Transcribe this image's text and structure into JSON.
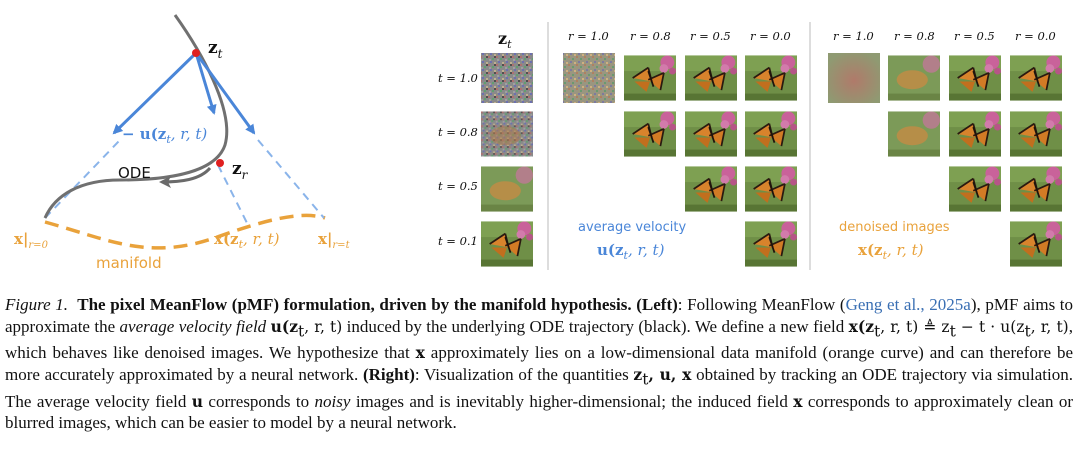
{
  "left_diagram": {
    "zt_label": "z",
    "zt_sub": "t",
    "u_label": "− u(z",
    "u_sub": "t",
    "u_tail": ", r, t)",
    "ode_label": "ODE",
    "zr_label": "z",
    "zr_sub": "r",
    "x_r0_label": "x|",
    "x_r0_sub": "r=0",
    "x_mid_label": "x(z",
    "x_mid_sub": "t",
    "x_mid_tail": ", r, t)",
    "x_rt_label": "x|",
    "x_rt_sub": "r=t",
    "manifold_label": "manifold",
    "colors": {
      "blue": "#4a86d8",
      "light_blue": "#8ab4ea",
      "orange": "#e9a23b",
      "gray": "#707070",
      "red": "#e02020"
    }
  },
  "grid": {
    "zt_header": "z",
    "zt_header_sub": "t",
    "r_headers": [
      "r = 1.0",
      "r = 0.8",
      "r = 0.5",
      "r = 0.0"
    ],
    "t_labels": [
      "t = 1.0",
      "t = 0.8",
      "t = 0.5",
      "t = 0.1"
    ],
    "velocity_title": "average velocity",
    "velocity_formula": "u(z",
    "velocity_sub": "t",
    "velocity_tail": ", r, t)",
    "denoised_title": "denoised images",
    "denoised_formula": "x(z",
    "denoised_sub": "t",
    "denoised_tail": ", r, t)"
  },
  "caption": {
    "figure_label": "Figure 1.",
    "title": "The pixel MeanFlow (pMF) formulation, driven by the manifold hypothesis.",
    "left_tag": "(Left)",
    "s1": ": Following MeanFlow (",
    "citation": "Geng et al., 2025a",
    "s2": "), pMF aims to approximate the ",
    "avf": "average velocity field",
    "s3_math": "u(z",
    "s3_sub": "t",
    "s3_tail": ", r, t)",
    "s4": " induced by the underlying ODE trajectory (black). We define a new field ",
    "def_math": "x(z",
    "def_sub": "t",
    "def_mid": ", r, t) ≜ z",
    "def_sub2": "t",
    "def_mid2": " − t · u(z",
    "def_sub3": "t",
    "def_tail": ", r, t)",
    "s5": ", which behaves like denoised images. We hypothesize that ",
    "x_sym": "x",
    "s6": " approximately lies on a low-dimensional data manifold (orange curve) and can therefore be more accurately approximated by a neural network. ",
    "right_tag": "(Right)",
    "s7": ": Visualization of the quantities ",
    "q_z": "z",
    "q_sub": "t",
    "q_rest": ", u, x",
    "s8": " obtained by tracking an ODE trajectory via simulation. The average velocity field ",
    "u_sym": "u",
    "s9": " corresponds to ",
    "noisy": "noisy",
    "s10": " images and is inevitably higher-dimensional; the induced field ",
    "x_sym2": "x",
    "s11": " corresponds to approximately clean or blurred images, which can be easier to model by a neural network."
  }
}
